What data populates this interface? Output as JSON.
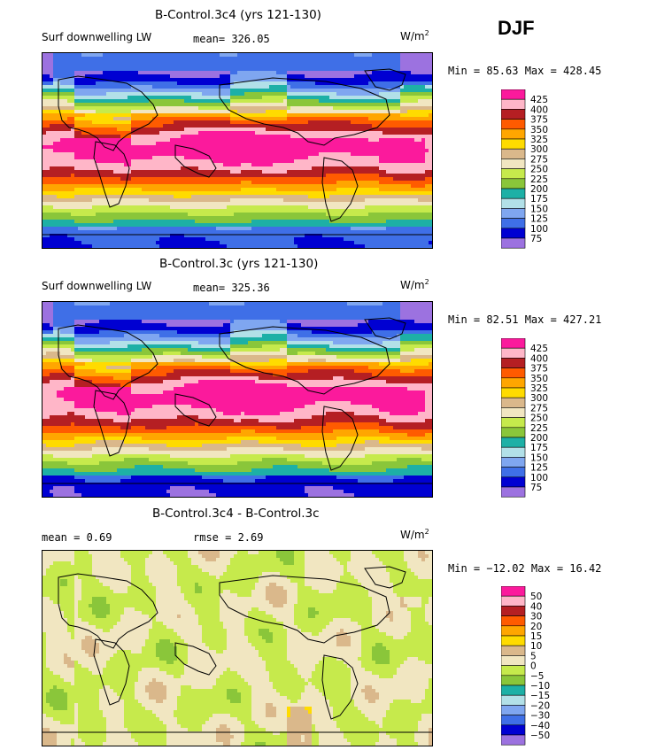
{
  "season": "DJF",
  "palette": {
    "abs": [
      "#9c72e0",
      "#0000d2",
      "#3f6fe7",
      "#7fa6f0",
      "#b2e0e8",
      "#1db0a6",
      "#8ac63a",
      "#c6ea4c",
      "#f1e6c1",
      "#dab88b",
      "#ffdb00",
      "#ffa600",
      "#ff5b00",
      "#b51f23",
      "#ffb6c8",
      "#fb1a9c"
    ],
    "diff": [
      "#9c72e0",
      "#0000d2",
      "#3f6fe7",
      "#7fa6f0",
      "#b2e0e8",
      "#1db0a6",
      "#8ac63a",
      "#c6ea4c",
      "#f1e6c1",
      "#dab88b",
      "#ffdb00",
      "#ffa600",
      "#ff5b00",
      "#b51f23",
      "#ffb6c8",
      "#fb1a9c"
    ]
  },
  "chart_data": [
    {
      "type": "heatmap",
      "title": "B-Control.3c4 (yrs 121-130)",
      "variable": "Surf downwelling LW",
      "mean_label": "mean= 326.05",
      "units_base": "W/m",
      "units_exp": "2",
      "min_max": "Min =  85.63 Max = 428.45",
      "min": 85.63,
      "max": 428.45,
      "levels": [
        "425",
        "400",
        "375",
        "350",
        "325",
        "300",
        "275",
        "250",
        "225",
        "200",
        "175",
        "150",
        "125",
        "100",
        "75"
      ],
      "palette": "abs",
      "field": "abs_a"
    },
    {
      "type": "heatmap",
      "title": "B-Control.3c (yrs 121-130)",
      "variable": "Surf downwelling LW",
      "mean_label": "mean= 325.36",
      "units_base": "W/m",
      "units_exp": "2",
      "min_max": "Min =  82.51 Max = 427.21",
      "min": 82.51,
      "max": 427.21,
      "levels": [
        "425",
        "400",
        "375",
        "350",
        "325",
        "300",
        "275",
        "250",
        "225",
        "200",
        "175",
        "150",
        "125",
        "100",
        "75"
      ],
      "palette": "abs",
      "field": "abs_b"
    },
    {
      "type": "heatmap",
      "title": "B-Control.3c4 - B-Control.3c",
      "variable": "",
      "mean_label": "mean =   0.69",
      "rmse_label": "rmse =   2.69",
      "units_base": "W/m",
      "units_exp": "2",
      "min_max": "Min = −12.02 Max =  16.42",
      "min": -12.02,
      "max": 16.42,
      "levels": [
        "50",
        "40",
        "30",
        "20",
        "15",
        "10",
        "5",
        "0",
        "−5",
        "−10",
        "−15",
        "−20",
        "−30",
        "−40",
        "−50"
      ],
      "palette": "diff",
      "field": "diff"
    }
  ]
}
